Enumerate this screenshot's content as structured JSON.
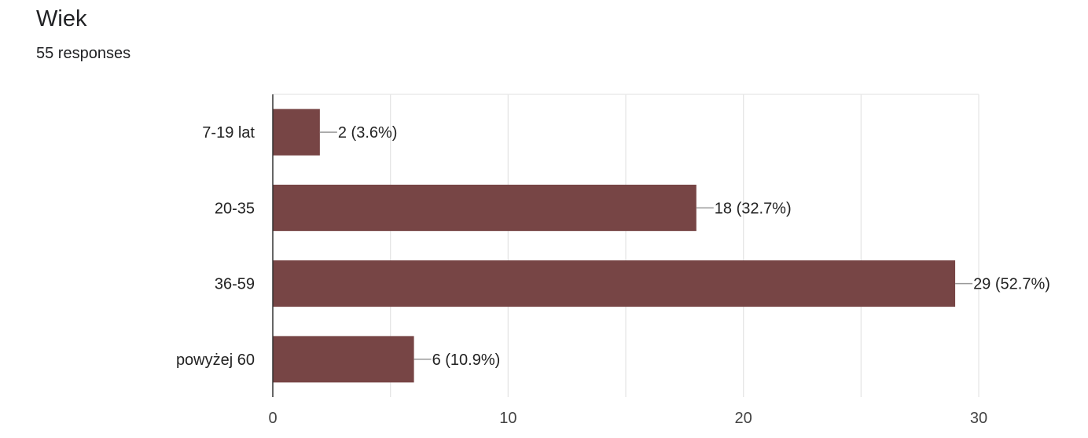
{
  "header": {
    "title": "Wiek",
    "responses": "55 responses"
  },
  "colors": {
    "bar": "#774545",
    "grid": "#e6e6e6",
    "axis": "#333333",
    "leader": "#999999"
  },
  "chart_data": {
    "type": "bar",
    "orientation": "horizontal",
    "categories": [
      "7-19 lat",
      "20-35",
      "36-59",
      "powyżej 60"
    ],
    "values": [
      2,
      18,
      29,
      6
    ],
    "data_labels": [
      "2 (3.6%)",
      "18 (32.7%)",
      "29 (52.7%)",
      "6 (10.9%)"
    ],
    "xlim": [
      0,
      30
    ],
    "xticks": [
      0,
      10,
      20,
      30
    ],
    "xtick_labels": [
      "0",
      "10",
      "20",
      "30"
    ],
    "grid": true
  }
}
